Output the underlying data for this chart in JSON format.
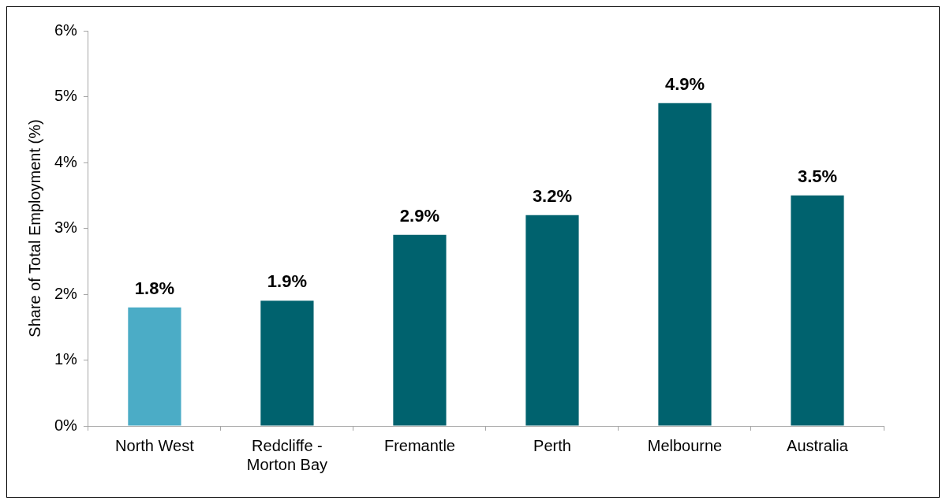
{
  "chart_data": {
    "type": "bar",
    "ylabel": "Share of Total Employment (%)",
    "categories": [
      "North West",
      "Redcliffe - Morton Bay",
      "Fremantle",
      "Perth",
      "Melbourne",
      "Australia"
    ],
    "values": [
      1.8,
      1.9,
      2.9,
      3.2,
      4.9,
      3.5
    ],
    "colors": [
      "#4bacc6",
      "#00626e",
      "#00626e",
      "#00626e",
      "#00626e",
      "#00626e"
    ],
    "value_labels": [
      "1.8%",
      "1.9%",
      "2.9%",
      "3.2%",
      "4.9%",
      "3.5%"
    ],
    "ylim": [
      0,
      6
    ],
    "yticks": [
      {
        "value": 0,
        "label": "0%"
      },
      {
        "value": 1,
        "label": "1%"
      },
      {
        "value": 2,
        "label": "2%"
      },
      {
        "value": 3,
        "label": "3%"
      },
      {
        "value": 4,
        "label": "4%"
      },
      {
        "value": 5,
        "label": "5%"
      },
      {
        "value": 6,
        "label": "6%"
      }
    ],
    "grid": false,
    "legend": false
  }
}
